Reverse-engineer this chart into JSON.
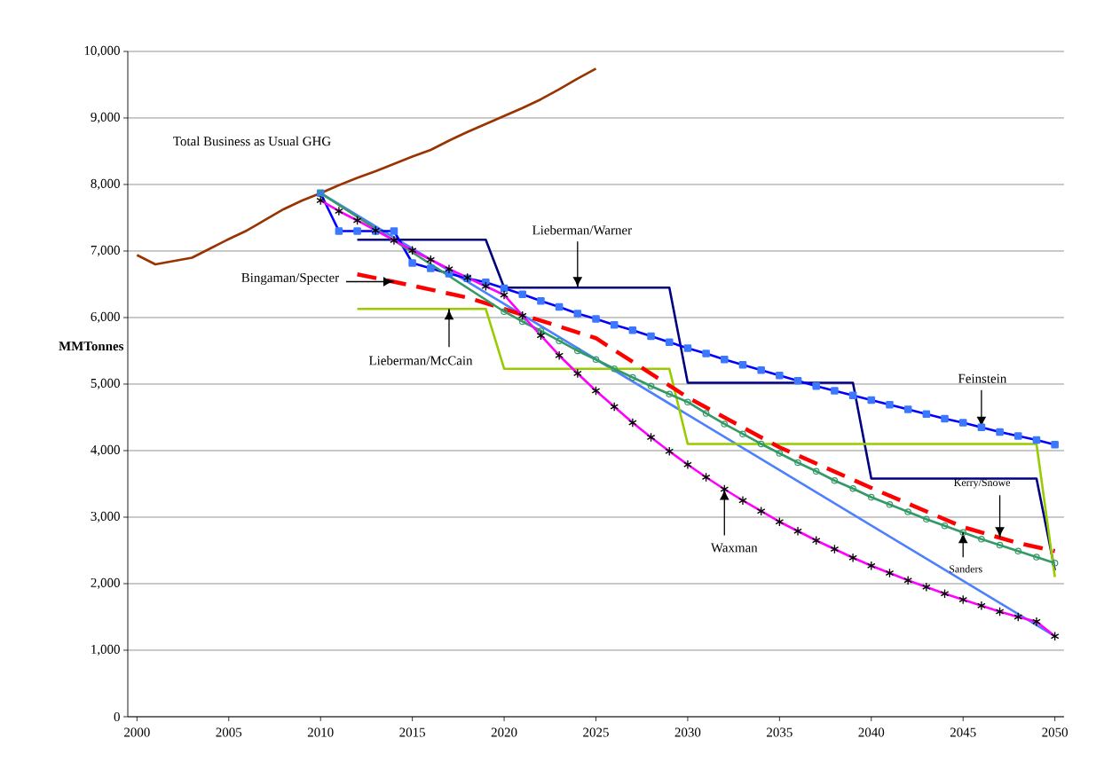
{
  "chart_data": {
    "type": "line",
    "ylabel": "MMTonnes",
    "xlim": [
      1999.5,
      2050.5
    ],
    "ylim": [
      0,
      10000
    ],
    "xticks": [
      2000,
      2005,
      2010,
      2015,
      2020,
      2025,
      2030,
      2035,
      2040,
      2045,
      2050
    ],
    "yticks": [
      0,
      {
        "value": 1000,
        "label": "1,000"
      },
      {
        "value": 2000,
        "label": "2,000"
      },
      {
        "value": 3000,
        "label": "3,000"
      },
      {
        "value": 4000,
        "label": "4,000"
      },
      {
        "value": 5000,
        "label": "5,000"
      },
      {
        "value": 6000,
        "label": "6,000"
      },
      {
        "value": 7000,
        "label": "7,000"
      },
      {
        "value": 8000,
        "label": "8,000"
      },
      {
        "value": 9000,
        "label": "9,000"
      },
      {
        "value": 10000,
        "label": "10,000"
      }
    ],
    "grid": "y",
    "series": [
      {
        "color": "#993300",
        "marker": "none",
        "line_style": "solid",
        "x": [
          2000,
          2001,
          2002,
          2003,
          2004,
          2005,
          2006,
          2007,
          2008,
          2009,
          2010,
          2011,
          2012,
          2013,
          2014,
          2015,
          2016,
          2017,
          2018,
          2019,
          2020,
          2021,
          2022,
          2023,
          2024,
          2025
        ],
        "values": [
          6940,
          6800,
          6850,
          6900,
          7040,
          7180,
          7310,
          7470,
          7630,
          7760,
          7870,
          7990,
          8100,
          8200,
          8310,
          8420,
          8520,
          8660,
          8790,
          8910,
          9030,
          9150,
          9280,
          9430,
          9590,
          9740
        ]
      },
      {
        "color": "#4d7fff",
        "line_style": "solid",
        "x": [
          2010,
          2050
        ],
        "values": [
          7870,
          1210
        ]
      },
      {
        "color": "#000080",
        "marker": "none",
        "line_style": "solid",
        "x": [
          2012,
          2019,
          2020,
          2029,
          2030,
          2039,
          2040,
          2049,
          2050
        ],
        "values": [
          7170,
          7170,
          6450,
          6450,
          5020,
          5020,
          3580,
          3580,
          2200
        ]
      },
      {
        "color": "#99cc00",
        "marker": "none",
        "line_style": "solid",
        "x": [
          2012,
          2019,
          2020,
          2029,
          2030,
          2049,
          2050
        ],
        "values": [
          6130,
          6130,
          5230,
          5230,
          4100,
          4100,
          2100
        ]
      },
      {
        "color": "#ff0000",
        "marker": "none",
        "line_style": "dashed",
        "x": [
          2012,
          2015,
          2018,
          2020,
          2025,
          2030,
          2035,
          2040,
          2045,
          2048,
          2050
        ],
        "values": [
          6650,
          6480,
          6300,
          6130,
          5690,
          4800,
          4050,
          3440,
          2850,
          2610,
          2490
        ]
      },
      {
        "color": "#0000ff",
        "marker": "square",
        "line_style": "solid",
        "x": [
          2010,
          2011,
          2012,
          2013,
          2014,
          2015,
          2016,
          2017,
          2018,
          2019,
          2020,
          2021,
          2022,
          2023,
          2024,
          2025,
          2026,
          2027,
          2028,
          2029,
          2030,
          2031,
          2032,
          2033,
          2034,
          2035,
          2036,
          2037,
          2038,
          2039,
          2040,
          2041,
          2042,
          2043,
          2044,
          2045,
          2046,
          2047,
          2048,
          2049,
          2050
        ],
        "values": [
          7870,
          7300,
          7300,
          7300,
          7300,
          6820,
          6740,
          6660,
          6590,
          6530,
          6440,
          6350,
          6250,
          6160,
          6060,
          5980,
          5890,
          5810,
          5720,
          5630,
          5540,
          5460,
          5370,
          5290,
          5210,
          5130,
          5050,
          4970,
          4900,
          4830,
          4760,
          4690,
          4620,
          4550,
          4480,
          4420,
          4350,
          4280,
          4220,
          4160,
          4090
        ]
      },
      {
        "color": "#339966",
        "marker": "circle",
        "line_style": "solid",
        "x": [
          2010,
          2020,
          2021,
          2022,
          2023,
          2024,
          2025,
          2026,
          2027,
          2028,
          2029,
          2030,
          2031,
          2032,
          2033,
          2034,
          2035,
          2036,
          2037,
          2038,
          2039,
          2040,
          2041,
          2042,
          2043,
          2044,
          2045,
          2046,
          2047,
          2048,
          2049,
          2050
        ],
        "values": [
          7870,
          6090,
          5940,
          5800,
          5650,
          5500,
          5370,
          5230,
          5100,
          4970,
          4850,
          4730,
          4560,
          4400,
          4250,
          4100,
          3960,
          3820,
          3690,
          3550,
          3430,
          3300,
          3190,
          3080,
          2970,
          2870,
          2770,
          2670,
          2580,
          2490,
          2400,
          2310
        ]
      },
      {
        "color": "#ff00ff",
        "marker": "cross",
        "line_style": "solid",
        "x": [
          2010,
          2011,
          2012,
          2013,
          2014,
          2015,
          2016,
          2017,
          2018,
          2019,
          2020,
          2021,
          2022,
          2023,
          2024,
          2025,
          2026,
          2027,
          2028,
          2029,
          2030,
          2031,
          2032,
          2033,
          2034,
          2035,
          2036,
          2037,
          2038,
          2039,
          2040,
          2041,
          2042,
          2043,
          2044,
          2045,
          2046,
          2047,
          2048,
          2049,
          2050
        ],
        "values": [
          7760,
          7600,
          7460,
          7310,
          7160,
          7010,
          6870,
          6730,
          6600,
          6470,
          6340,
          6030,
          5730,
          5430,
          5160,
          4900,
          4660,
          4420,
          4200,
          3990,
          3790,
          3600,
          3420,
          3250,
          3090,
          2930,
          2790,
          2650,
          2520,
          2390,
          2270,
          2160,
          2050,
          1950,
          1850,
          1760,
          1670,
          1580,
          1500,
          1430,
          1210
        ]
      }
    ],
    "annotations": [
      "Total Business as Usual GHG",
      {
        "text": "Lieberman/Warner",
        "x": 2024,
        "y": 6450
      },
      {
        "text": "Bingaman/Specter",
        "x": 2014,
        "y": 6540
      },
      {
        "text": "Lieberman/McCain",
        "x": 2017,
        "y": 6130
      },
      {
        "text": "Feinstein",
        "x": 2046,
        "y": 4350
      },
      {
        "text": "Kerry/Snowe",
        "x": 2047,
        "y": 2690
      },
      {
        "text": "Sanders",
        "x": 2045,
        "y": 2770
      },
      {
        "text": "Waxman",
        "x": 2032,
        "y": 3420
      }
    ]
  }
}
